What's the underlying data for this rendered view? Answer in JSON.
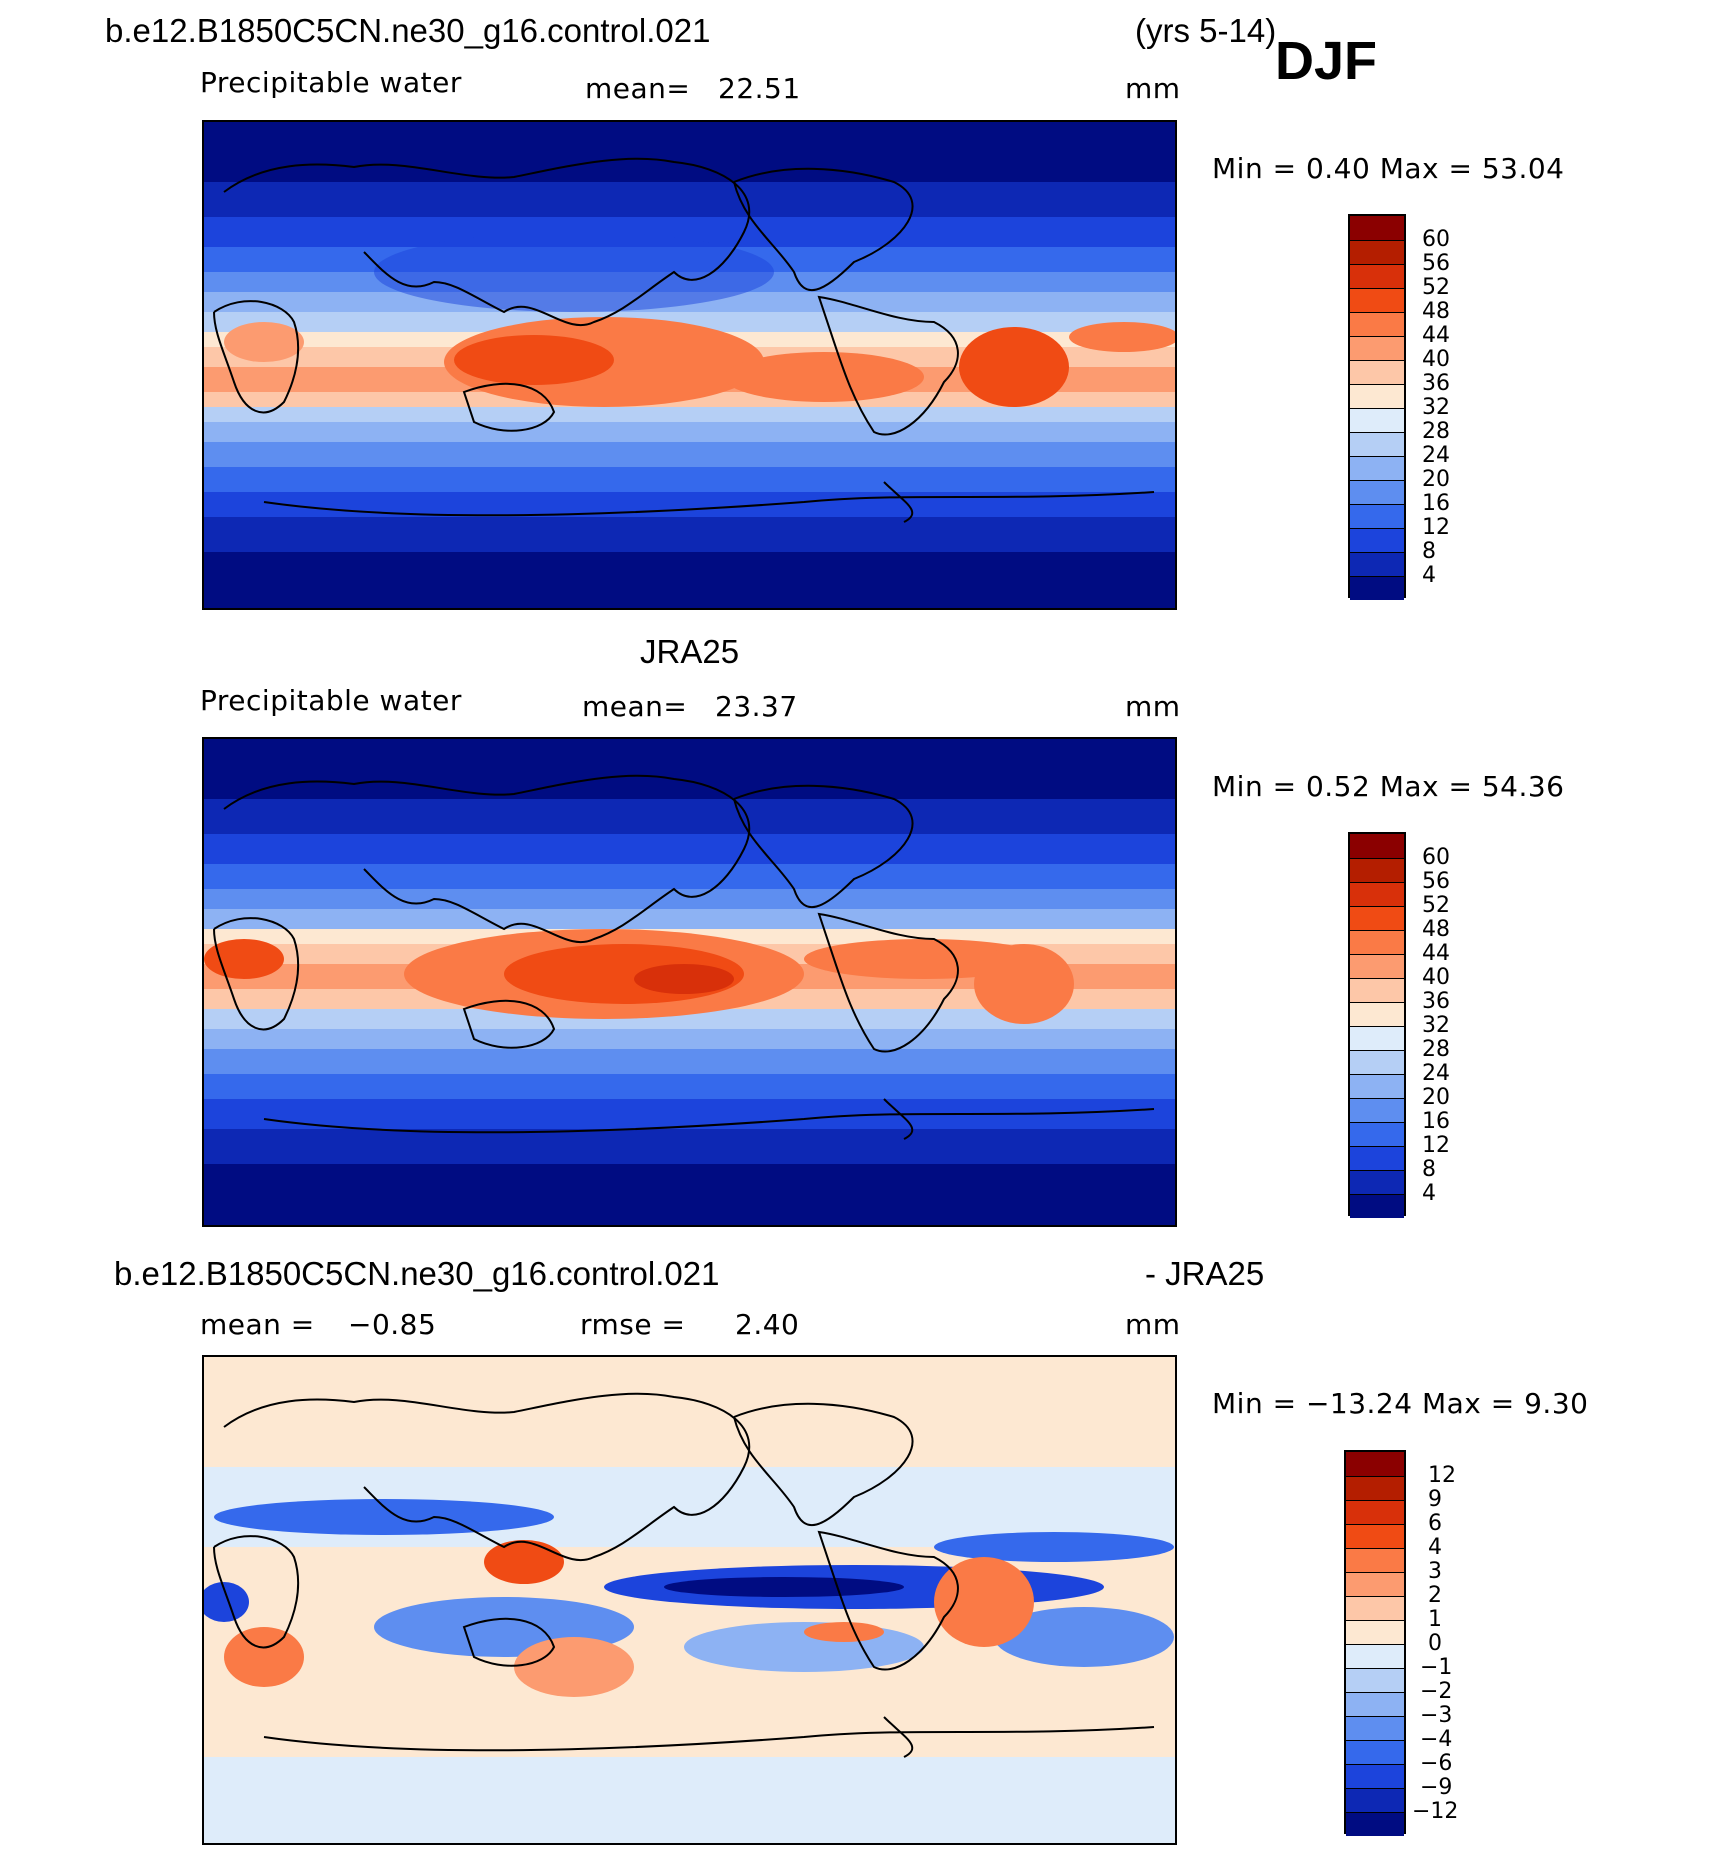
{
  "season": "DJF",
  "panel1": {
    "case": "b.e12.B1850C5CN.ne30_g16.control.021",
    "years": "(yrs 5-14)",
    "variable": "Precipitable  water",
    "mean_label": "mean=",
    "mean_value": "22.51",
    "units": "mm",
    "minmax": "Min  =     0.40  Max  =    53.04"
  },
  "panel2": {
    "title": "JRA25",
    "variable": "Precipitable  water",
    "mean_label": "mean=",
    "mean_value": "23.37",
    "units": "mm",
    "minmax": "Min  =     0.52  Max  =    54.36"
  },
  "panel3": {
    "case": "b.e12.B1850C5CN.ne30_g16.control.021",
    "minus": "- JRA25",
    "mean_label": "mean  =",
    "mean_value": "−0.85",
    "rmse_label": "rmse  =",
    "rmse_value": "2.40",
    "units": "mm",
    "minmax": "Min  =  −13.24  Max  =     9.30"
  },
  "colorbar_abs": {
    "labels": [
      "60",
      "56",
      "52",
      "48",
      "44",
      "40",
      "36",
      "32",
      "28",
      "24",
      "20",
      "16",
      "12",
      "8",
      "4"
    ],
    "colors": [
      "#8b0000",
      "#b41e00",
      "#d8300a",
      "#f04b14",
      "#fa7a46",
      "#fc9b70",
      "#fdc7a8",
      "#fde8d2",
      "#deecfa",
      "#b5cff5",
      "#8db2f3",
      "#5e8ef0",
      "#3569ec",
      "#1c44dc",
      "#0d28b4",
      "#000c82"
    ]
  },
  "colorbar_diff": {
    "labels": [
      "12",
      "9",
      "6",
      "4",
      "3",
      "2",
      "1",
      "0",
      "−1",
      "−2",
      "−3",
      "−4",
      "−6",
      "−9",
      "−12"
    ],
    "colors": [
      "#8b0000",
      "#b41e00",
      "#d8300a",
      "#f04b14",
      "#fa7a46",
      "#fc9b70",
      "#fdc7a8",
      "#fde8d2",
      "#deecfa",
      "#b5cff5",
      "#8db2f3",
      "#5e8ef0",
      "#3569ec",
      "#1c44dc",
      "#0d28b4",
      "#000c82"
    ]
  }
}
